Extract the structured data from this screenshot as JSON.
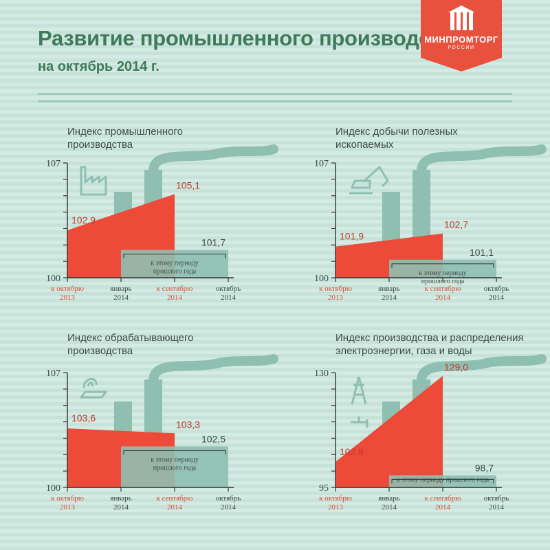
{
  "header": {
    "title": "Развитие промышленного производства",
    "subtitle": "на октябрь 2014 г.",
    "logo_text": "МИНПРОМТОРГ",
    "logo_sub": "РОССИИ"
  },
  "colors": {
    "accent_red": "#ee4a39",
    "prev_year": "#8fbfb1",
    "title_green": "#3f7a59",
    "background": "#d3ebe3"
  },
  "chart_data": [
    {
      "type": "area",
      "title": "Индекс промышленного производства",
      "ylim": [
        100,
        107
      ],
      "ytick_labels": [
        "107",
        "100"
      ],
      "categories": [
        {
          "line1": "к октябрю",
          "line2": "2013"
        },
        {
          "line1": "январь",
          "line2": "2014"
        },
        {
          "line1": "к сентябрю",
          "line2": "2014"
        },
        {
          "line1": "октябрь",
          "line2": "2014"
        }
      ],
      "start_value": 102.9,
      "start_label": "102,9",
      "end_value": 105.1,
      "end_label": "105,1",
      "prev_value": 101.7,
      "prev_label": "101,7",
      "prev_note": [
        "к этому периоду",
        "прошлого года"
      ],
      "icon": "factory-icon"
    },
    {
      "type": "area",
      "title": "Индекс добычи полезных ископаемых",
      "ylim": [
        100,
        107
      ],
      "ytick_labels": [
        "107",
        "100"
      ],
      "categories": [
        {
          "line1": "к октябрю",
          "line2": "2013"
        },
        {
          "line1": "январь",
          "line2": "2014"
        },
        {
          "line1": "к сентябрю",
          "line2": "2014"
        },
        {
          "line1": "октябрь",
          "line2": "2014"
        }
      ],
      "start_value": 101.9,
      "start_label": "101,9",
      "end_value": 102.7,
      "end_label": "102,7",
      "prev_value": 101.1,
      "prev_label": "101,1",
      "prev_note": [
        "к этому периоду",
        "прошлого года"
      ],
      "icon": "excavator-icon"
    },
    {
      "type": "area",
      "title": "Индекс обрабатывающего производства",
      "ylim": [
        100,
        107
      ],
      "ytick_labels": [
        "107",
        "100"
      ],
      "categories": [
        {
          "line1": "к октябрю",
          "line2": "2013"
        },
        {
          "line1": "январь",
          "line2": "2014"
        },
        {
          "line1": "к сентябрю",
          "line2": "2014"
        },
        {
          "line1": "октябрь",
          "line2": "2014"
        }
      ],
      "start_value": 103.6,
      "start_label": "103,6",
      "end_value": 103.3,
      "end_label": "103,3",
      "prev_value": 102.5,
      "prev_label": "102,5",
      "prev_note": [
        "к этому периоду",
        "прошлого года"
      ],
      "icon": "woodworking-icon"
    },
    {
      "type": "area",
      "title": "Индекс производства и распределения электроэнергии, газа и воды",
      "ylim": [
        95,
        130
      ],
      "ytick_labels": [
        "130",
        "95"
      ],
      "categories": [
        {
          "line1": "к октябрю",
          "line2": "2013"
        },
        {
          "line1": "январь",
          "line2": "2014"
        },
        {
          "line1": "к сентябрю",
          "line2": "2014"
        },
        {
          "line1": "октябрь",
          "line2": "2014"
        }
      ],
      "start_value": 102.8,
      "start_label": "102,8",
      "end_value": 129.0,
      "end_label": "129,0",
      "prev_value": 98.7,
      "prev_label": "98,7",
      "prev_note": [
        "к этому периоду прошлого года"
      ],
      "icon": "power-water-icon"
    }
  ]
}
